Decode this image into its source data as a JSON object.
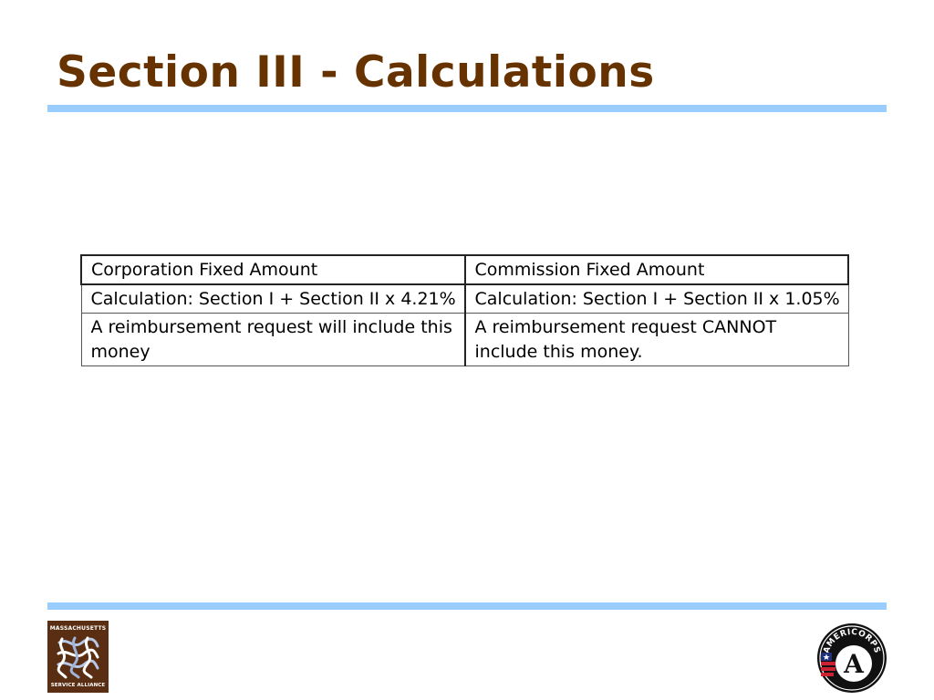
{
  "slide": {
    "title": "Section III - Calculations"
  },
  "table": {
    "headers": [
      "Corporation Fixed Amount",
      "Commission Fixed Amount"
    ],
    "rows": [
      [
        "Calculation: Section I + Section II x 4.21%",
        "Calculation: Section I + Section II x 1.05%"
      ],
      [
        "A reimbursement request will include this money",
        "A reimbursement request CANNOT include this money."
      ]
    ]
  },
  "footer": {
    "left_logo": {
      "icon": "massachusetts-service-alliance-logo",
      "line1": "MASSACHUSETTS",
      "line2": "SERVICE ALLIANCE"
    },
    "right_logo": {
      "icon": "americorps-logo",
      "text": "AMERICORPS",
      "letter": "A"
    }
  },
  "colors": {
    "title": "#663300",
    "rule": "#99ccff",
    "logo_background": "#5a2e12"
  }
}
